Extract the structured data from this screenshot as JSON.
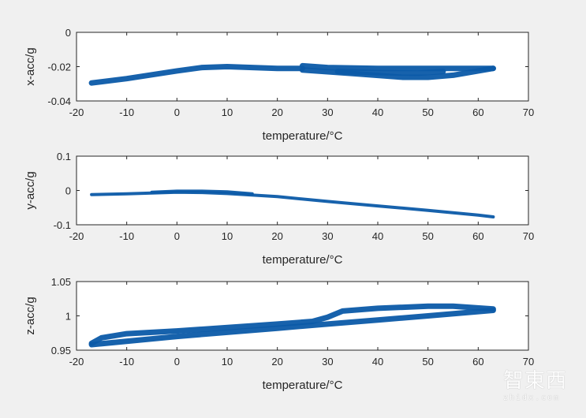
{
  "chart_data": [
    {
      "type": "line",
      "xlabel": "temperature/°C",
      "ylabel": "x-acc/g",
      "xlim": [
        -20,
        70
      ],
      "ylim": [
        -0.04,
        0
      ],
      "xticks": [
        "-20",
        "-10",
        "0",
        "10",
        "20",
        "30",
        "40",
        "50",
        "60",
        "70"
      ],
      "yticks": [
        "-0.04",
        "-0.02",
        "0"
      ],
      "grid": false,
      "color": "#0b5aa8",
      "series": [
        {
          "x": [
            -17,
            -10,
            0,
            5,
            10,
            20,
            25
          ],
          "y": [
            -0.0295,
            -0.027,
            -0.0225,
            -0.0205,
            -0.02,
            -0.021,
            -0.021
          ]
        },
        {
          "x": [
            25,
            30,
            40,
            50,
            63
          ],
          "y": [
            -0.0195,
            -0.0205,
            -0.021,
            -0.021,
            -0.021
          ]
        },
        {
          "x": [
            25,
            35,
            45,
            50,
            55,
            63
          ],
          "y": [
            -0.022,
            -0.024,
            -0.0262,
            -0.0262,
            -0.025,
            -0.021
          ]
        },
        {
          "x": [
            32,
            40,
            48,
            53
          ],
          "y": [
            -0.0228,
            -0.0235,
            -0.0238,
            -0.0228
          ]
        }
      ]
    },
    {
      "type": "line",
      "xlabel": "temperature/°C",
      "ylabel": "y-acc/g",
      "xlim": [
        -20,
        70
      ],
      "ylim": [
        -0.1,
        0.1
      ],
      "xticks": [
        "-20",
        "-10",
        "0",
        "10",
        "20",
        "30",
        "40",
        "50",
        "60",
        "70"
      ],
      "yticks": [
        "-0.1",
        "0",
        "0.1"
      ],
      "grid": false,
      "color": "#0b5aa8",
      "series": [
        {
          "x": [
            -17,
            -10,
            0,
            5,
            10,
            20,
            30,
            40,
            50,
            60,
            63
          ],
          "y": [
            -0.012,
            -0.01,
            -0.005,
            -0.006,
            -0.009,
            -0.018,
            -0.032,
            -0.045,
            -0.058,
            -0.072,
            -0.077
          ]
        },
        {
          "x": [
            -5,
            0,
            5,
            10,
            15
          ],
          "y": [
            -0.005,
            -0.002,
            -0.002,
            -0.004,
            -0.01
          ]
        }
      ]
    },
    {
      "type": "line",
      "xlabel": "temperature/°C",
      "ylabel": "z-acc/g",
      "xlim": [
        -20,
        70
      ],
      "ylim": [
        0.95,
        1.05
      ],
      "xticks": [
        "-20",
        "-10",
        "0",
        "10",
        "20",
        "30",
        "40",
        "50",
        "60",
        "70"
      ],
      "yticks": [
        "0.95",
        "1",
        "1.05"
      ],
      "grid": false,
      "color": "#0b5aa8",
      "series": [
        {
          "x": [
            -17,
            0,
            20,
            30,
            40,
            50,
            63
          ],
          "y": [
            0.958,
            0.97,
            0.982,
            0.988,
            0.994,
            1.0,
            1.008
          ]
        },
        {
          "x": [
            -17,
            -15,
            -10,
            0,
            20,
            27,
            30,
            33,
            40,
            50,
            55,
            63
          ],
          "y": [
            0.96,
            0.968,
            0.974,
            0.978,
            0.988,
            0.992,
            0.998,
            1.007,
            1.011,
            1.014,
            1.014,
            1.01
          ]
        }
      ]
    }
  ],
  "watermark": {
    "cn": "智東西",
    "en": "zhidx.com"
  }
}
